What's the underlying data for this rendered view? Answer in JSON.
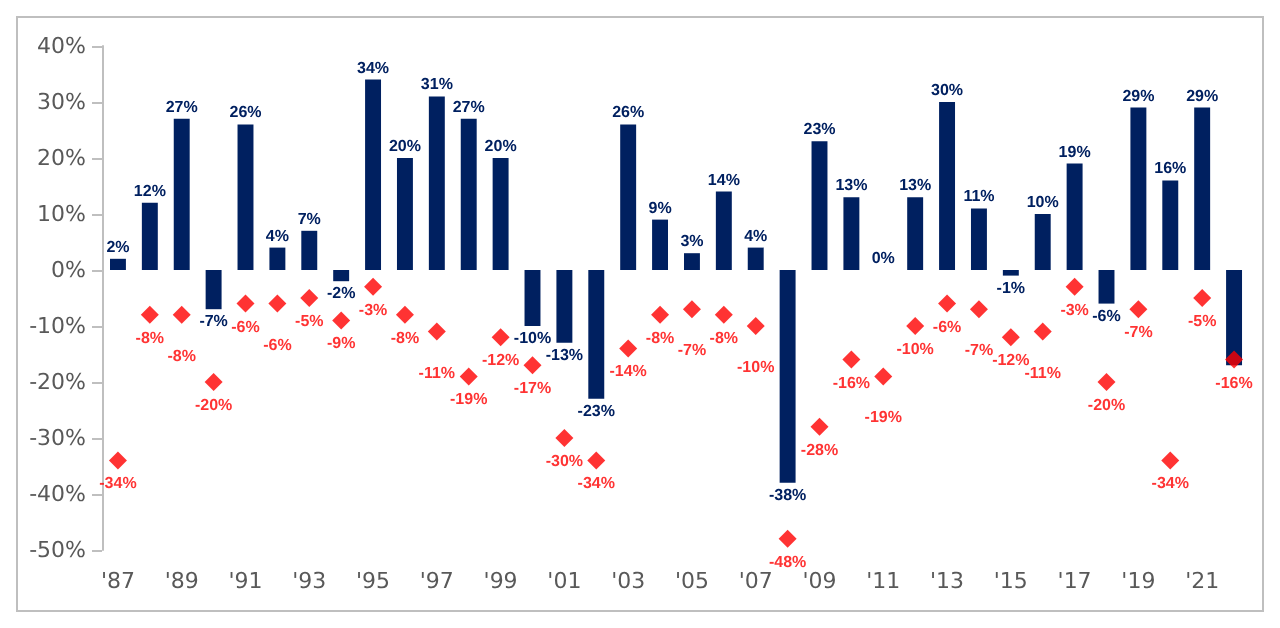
{
  "chart_data": {
    "type": "bar",
    "categories": [
      "'87",
      null,
      "'89",
      null,
      "'91",
      null,
      "'93",
      null,
      "'95",
      null,
      "'97",
      null,
      "'99",
      null,
      "'01",
      null,
      "'03",
      null,
      "'05",
      null,
      "'07",
      null,
      "'09",
      null,
      "'11",
      null,
      "'13",
      null,
      "'15",
      null,
      "'17",
      null,
      "'19",
      null,
      "'21",
      null
    ],
    "series": [
      {
        "color": "#002060",
        "values": [
          2,
          12,
          27,
          -7,
          26,
          4,
          7,
          -2,
          34,
          20,
          31,
          27,
          20,
          -10,
          -13,
          -23,
          26,
          9,
          3,
          14,
          4,
          -38,
          23,
          13,
          0,
          13,
          30,
          11,
          -1,
          10,
          19,
          -6,
          29,
          16,
          29,
          -17
        ],
        "value_labels": [
          "2%",
          "12%",
          "27%",
          "-7%",
          "26%",
          "4%",
          "7%",
          "-2%",
          "34%",
          "20%",
          "31%",
          "27%",
          "20%",
          "-10%",
          "-13%",
          "-23%",
          "26%",
          "9%",
          "3%",
          "14%",
          "4%",
          "-38%",
          "23%",
          "13%",
          "0%",
          "13%",
          "30%",
          "11%",
          "-1%",
          "10%",
          "19%",
          "-6%",
          "29%",
          "16%",
          "29%",
          null
        ]
      },
      {
        "type": "scatter",
        "color": "#ff0000",
        "values": [
          -34,
          -8,
          -8,
          -20,
          -6,
          -6,
          -5,
          -9,
          -3,
          -8,
          -11,
          -19,
          -12,
          -17,
          -30,
          -34,
          -14,
          -8,
          -7,
          -8,
          -10,
          -48,
          -28,
          -16,
          -19,
          -10,
          -6,
          -7,
          -12,
          -11,
          -3,
          -20,
          -7,
          -34,
          -5,
          -16
        ],
        "value_labels": [
          "-34%",
          "-8%",
          "-8%",
          "-20%",
          "-6%",
          "-6%",
          "-5%",
          "-9%",
          "-3%",
          "-8%",
          "-11%",
          "-19%",
          "-12%",
          "-17%",
          "-30%",
          "-34%",
          "-14%",
          "-8%",
          "-7%",
          "-8%",
          "-10%",
          "-48%",
          "-28%",
          "-16%",
          "-19%",
          "-10%",
          "-6%",
          "-7%",
          "-12%",
          "-11%",
          "-3%",
          "-20%",
          "-7%",
          "-34%",
          "-5%",
          "-16%"
        ]
      }
    ],
    "ylim": [
      -50,
      40
    ],
    "yticks": [
      {
        "value": -50,
        "label": "-50%"
      },
      {
        "value": -40,
        "label": "-40%"
      },
      {
        "value": -30,
        "label": "-30%"
      },
      {
        "value": -20,
        "label": "-20%"
      },
      {
        "value": -10,
        "label": "-10%"
      },
      {
        "value": 0,
        "label": "0%"
      },
      {
        "value": 10,
        "label": "10%"
      },
      {
        "value": 20,
        "label": "20%"
      },
      {
        "value": 30,
        "label": "30%"
      },
      {
        "value": 40,
        "label": "40%"
      }
    ],
    "marker": "diamond",
    "grid": false
  }
}
